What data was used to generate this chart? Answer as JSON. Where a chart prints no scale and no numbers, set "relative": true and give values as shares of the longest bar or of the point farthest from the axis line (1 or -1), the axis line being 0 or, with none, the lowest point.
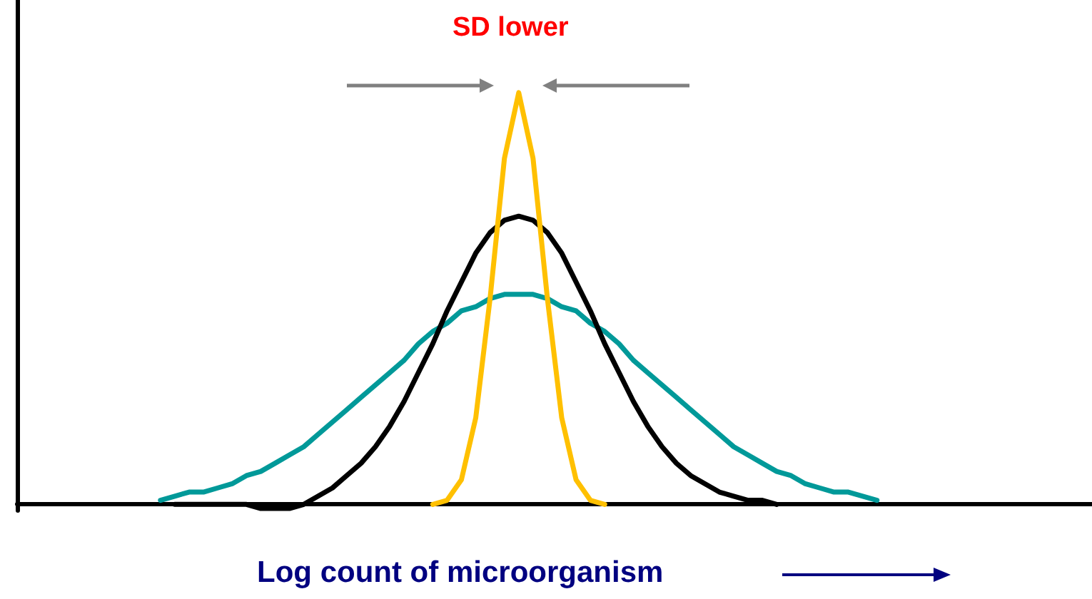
{
  "chart_data": {
    "type": "line",
    "relative": true,
    "xlabel": "Log count of microorganism",
    "annotations": [
      "SD lower"
    ],
    "grid": false,
    "marker": "none",
    "line_style": "solid",
    "categories": [
      null,
      null,
      null,
      null,
      null,
      null,
      null,
      null,
      null,
      null,
      null,
      null,
      null,
      null,
      null,
      null,
      null,
      null,
      null,
      null,
      null,
      null,
      null,
      null,
      null,
      null,
      null,
      null,
      null,
      null,
      null,
      null,
      null,
      null,
      null,
      null,
      null,
      null,
      null,
      null,
      null,
      null,
      null,
      null,
      null,
      null,
      null,
      null,
      null,
      null,
      null,
      null,
      null,
      null,
      null,
      null,
      null,
      null,
      null,
      null,
      null,
      null,
      null,
      null,
      null,
      null,
      null,
      null,
      null,
      null,
      null,
      null,
      null,
      null,
      null,
      null
    ],
    "series": [
      {
        "color": "#009999",
        "values": [
          null,
          null,
          null,
          null,
          null,
          null,
          null,
          null,
          null,
          null,
          0.01,
          0.02,
          0.03,
          0.03,
          0.04,
          0.05,
          0.07,
          0.08,
          0.1,
          0.12,
          0.14,
          0.17,
          0.2,
          0.23,
          0.26,
          0.29,
          0.32,
          0.35,
          0.39,
          0.42,
          0.44,
          0.47,
          0.48,
          0.5,
          0.51,
          0.51,
          0.51,
          0.5,
          0.48,
          0.47,
          0.44,
          0.42,
          0.39,
          0.35,
          0.32,
          0.29,
          0.26,
          0.23,
          0.2,
          0.17,
          0.14,
          0.12,
          0.1,
          0.08,
          0.07,
          0.05,
          0.04,
          0.03,
          0.03,
          0.02,
          0.01,
          null,
          null,
          null,
          null,
          null,
          null,
          null,
          null,
          null,
          null,
          null,
          null,
          null,
          null,
          null
        ]
      },
      {
        "color": "#000000",
        "values": [
          null,
          null,
          null,
          null,
          null,
          null,
          null,
          null,
          null,
          null,
          null,
          0,
          0,
          0,
          0,
          0,
          0,
          -0.01,
          -0.01,
          -0.01,
          0,
          0.02,
          0.04,
          0.07,
          0.1,
          0.14,
          0.19,
          0.25,
          0.32,
          0.39,
          0.47,
          0.54,
          0.61,
          0.66,
          0.69,
          0.7,
          0.69,
          0.66,
          0.61,
          0.54,
          0.47,
          0.39,
          0.32,
          0.25,
          0.19,
          0.14,
          0.1,
          0.07,
          0.05,
          0.03,
          0.02,
          0.01,
          0.01,
          0,
          null,
          null,
          null,
          null,
          null,
          null,
          null,
          null,
          null,
          null,
          null,
          null,
          null,
          null,
          null,
          null,
          null,
          null,
          null,
          null,
          null,
          null
        ]
      },
      {
        "color": "#ffc000",
        "values": [
          null,
          null,
          null,
          null,
          null,
          null,
          null,
          null,
          null,
          null,
          null,
          null,
          null,
          null,
          null,
          null,
          null,
          null,
          null,
          null,
          null,
          null,
          null,
          null,
          null,
          null,
          null,
          null,
          null,
          0,
          0.01,
          0.06,
          0.21,
          0.5,
          0.84,
          1,
          0.84,
          0.5,
          0.21,
          0.06,
          0.01,
          0,
          null,
          null,
          null,
          null,
          null,
          null,
          null,
          null,
          null,
          null,
          null,
          null,
          null,
          null,
          null,
          null,
          null,
          null,
          null,
          null,
          null,
          null,
          null,
          null,
          null,
          null,
          null,
          null,
          null,
          null,
          null,
          null,
          null,
          null
        ]
      }
    ]
  }
}
